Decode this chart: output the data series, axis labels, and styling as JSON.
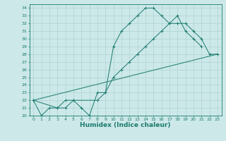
{
  "xlabel": "Humidex (Indice chaleur)",
  "color": "#1a7a6e",
  "background": "#cce8e8",
  "grid_color": "#a8cece",
  "ylim": [
    20,
    34.5
  ],
  "xlim": [
    -0.5,
    23.5
  ],
  "yticks": [
    20,
    21,
    22,
    23,
    24,
    25,
    26,
    27,
    28,
    29,
    30,
    31,
    32,
    33,
    34
  ],
  "xticks": [
    0,
    1,
    2,
    3,
    4,
    5,
    6,
    7,
    8,
    9,
    10,
    11,
    12,
    13,
    14,
    15,
    16,
    17,
    18,
    19,
    20,
    21,
    22,
    23
  ],
  "tick_fontsize": 4.5,
  "xlabel_fontsize": 6.5,
  "x_max": [
    0,
    1,
    2,
    3,
    4,
    5,
    6,
    7,
    8,
    9,
    10,
    11,
    12,
    13,
    14,
    15,
    16,
    17,
    18,
    19,
    20,
    21
  ],
  "y_max": [
    22,
    20,
    21,
    21,
    22,
    22,
    21,
    20,
    23,
    23,
    29,
    31,
    32,
    33,
    34,
    34,
    33,
    32,
    33,
    31,
    30,
    29
  ],
  "x_avg": [
    0,
    3,
    4,
    5,
    8,
    9,
    10,
    11,
    12,
    13,
    14,
    15,
    16,
    17,
    18,
    19,
    20,
    21,
    22,
    23
  ],
  "y_avg": [
    22,
    21,
    21,
    22,
    22,
    23,
    25,
    26,
    27,
    28,
    29,
    30,
    31,
    32,
    32,
    32,
    31,
    30,
    28,
    28
  ],
  "x_min": [
    0,
    23
  ],
  "y_min": [
    22,
    28
  ]
}
